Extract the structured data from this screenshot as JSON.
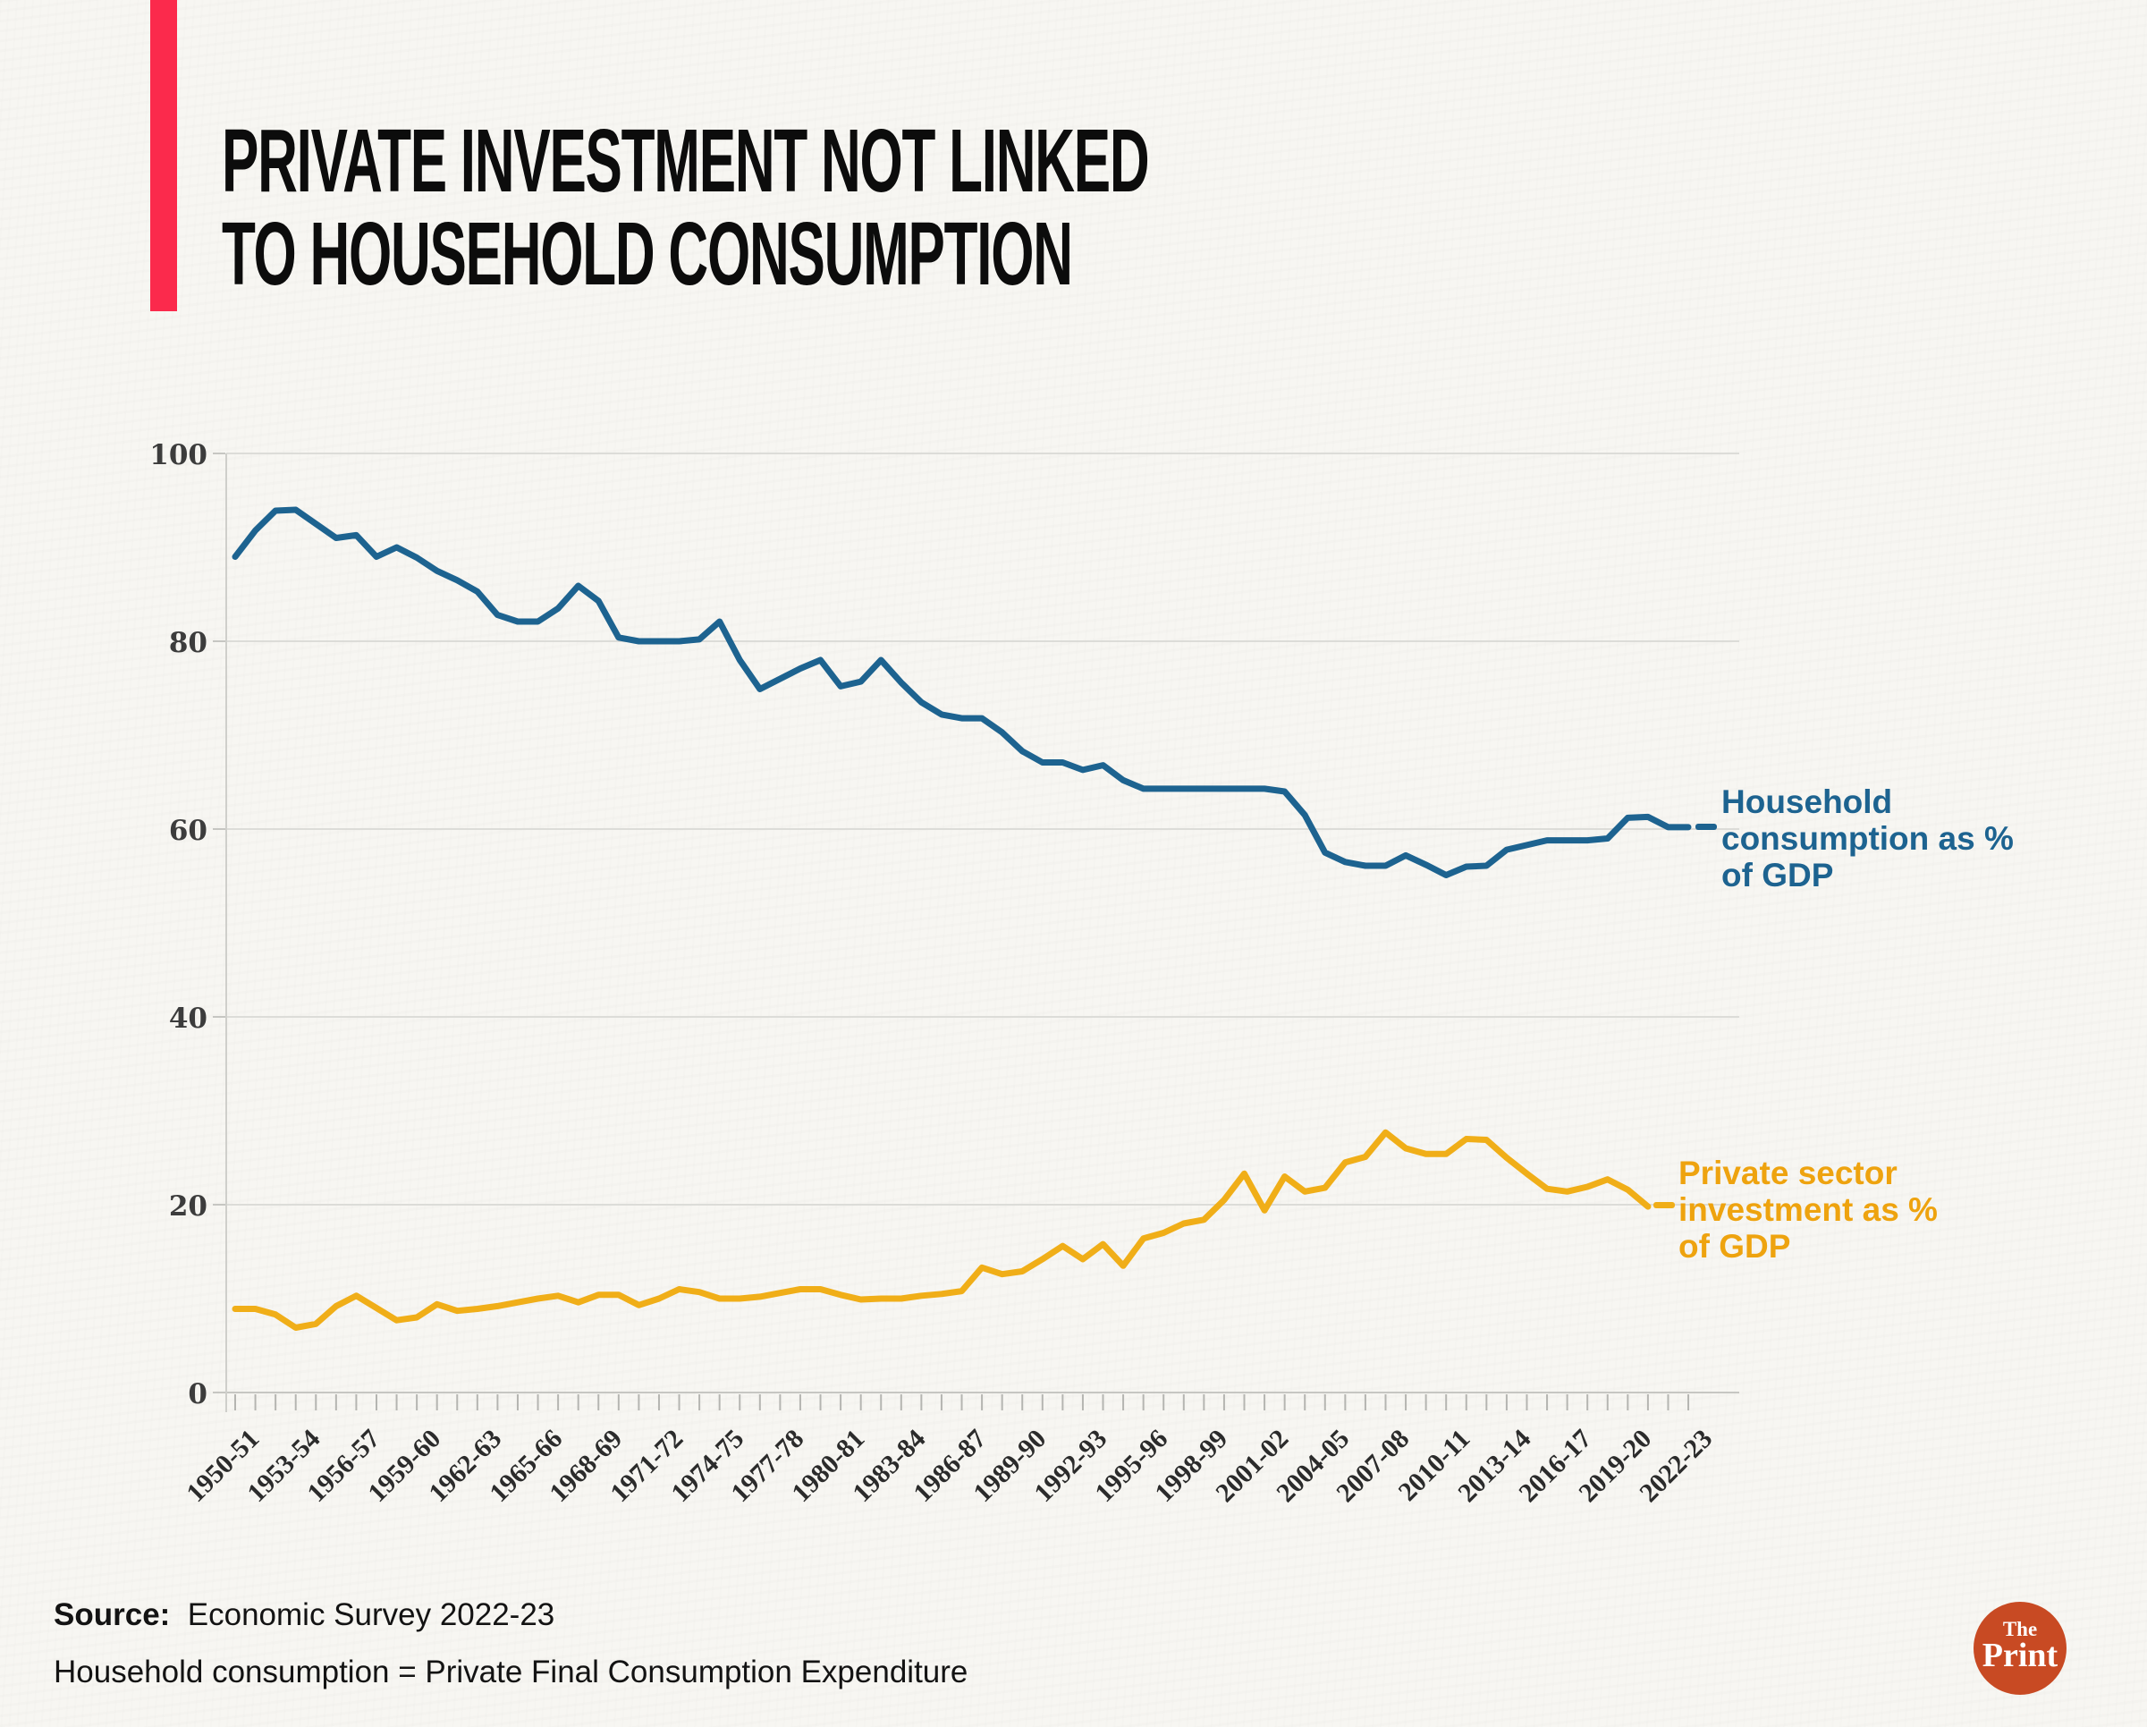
{
  "title": {
    "line1": "PRIVATE INVESTMENT NOT LINKED",
    "line2": "TO HOUSEHOLD CONSUMPTION"
  },
  "source": {
    "label": "Source:",
    "text": "Economic Survey 2022-23",
    "note": "Household consumption = Private Final Consumption Expenditure"
  },
  "logo": {
    "the": "The",
    "print": "Print"
  },
  "colors": {
    "background": "#f7f6f2",
    "accent_bar": "#fb2a4c",
    "household_line": "#1d6390",
    "investment_line": "#f0ae18",
    "gridline": "#dcdcd8",
    "axis": "#c6c6c2",
    "logo_circle": "#c84a23"
  },
  "chart_data": {
    "type": "line",
    "title": "",
    "xlabel": "",
    "ylabel": "",
    "ylim": [
      0,
      100
    ],
    "yticks": [
      0,
      20,
      40,
      60,
      80,
      100
    ],
    "grid": "horizontal",
    "legend_position": "right-of-line-end",
    "x_label_step": 3,
    "x_labels": [
      "1950-51",
      "1953-54",
      "1956-57",
      "1959-60",
      "1962-63",
      "1965-66",
      "1968-69",
      "1971-72",
      "1974-75",
      "1977-78",
      "1980-81",
      "1983-84",
      "1986-87",
      "1989-90",
      "1992-93",
      "1995-96",
      "1998-99",
      "2001-02",
      "2004-05",
      "2007-08",
      "2010-11",
      "2013-14",
      "2016-17",
      "2019-20",
      "2022-23"
    ],
    "series": [
      {
        "name": "Household consumption as % of GDP",
        "label_lines": [
          "Household",
          "consumption as %",
          "of GDP"
        ],
        "color": "#1d6390",
        "start_year": "1950-51",
        "end_year": "2022-23",
        "values": [
          89.0,
          91.8,
          93.9,
          94.0,
          92.5,
          91.0,
          91.3,
          89.0,
          90.0,
          88.9,
          87.5,
          86.5,
          85.3,
          82.8,
          82.1,
          82.1,
          83.5,
          85.9,
          84.3,
          80.4,
          80.0,
          80.0,
          80.0,
          80.2,
          82.1,
          78.0,
          74.9,
          76.0,
          77.1,
          78.0,
          75.2,
          75.7,
          78.0,
          75.6,
          73.5,
          72.2,
          71.8,
          71.8,
          70.3,
          68.3,
          67.1,
          67.1,
          66.3,
          66.8,
          65.2,
          64.3,
          64.3,
          64.3,
          64.3,
          64.3,
          64.3,
          64.3,
          64.0,
          61.5,
          57.5,
          56.5,
          56.1,
          56.1,
          57.2,
          56.2,
          55.1,
          56.0,
          56.1,
          57.8,
          58.3,
          58.8,
          58.8,
          58.8,
          59.0,
          61.2,
          61.3,
          60.2,
          60.2
        ]
      },
      {
        "name": "Private sector investment as % of GDP",
        "label_lines": [
          "Private sector",
          "investment as %",
          "of GDP"
        ],
        "color": "#f0ae18",
        "start_year": "1950-51",
        "end_year": "2020-21",
        "values": [
          8.9,
          8.9,
          8.3,
          6.9,
          7.3,
          9.2,
          10.3,
          9.0,
          7.7,
          8.0,
          9.4,
          8.7,
          8.9,
          9.2,
          9.6,
          10.0,
          10.3,
          9.6,
          10.4,
          10.4,
          9.3,
          10.0,
          11.0,
          10.7,
          10.0,
          10.0,
          10.2,
          10.6,
          11.0,
          11.0,
          10.4,
          9.9,
          10.0,
          10.0,
          10.3,
          10.5,
          10.8,
          13.3,
          12.6,
          12.9,
          14.2,
          15.6,
          14.2,
          15.8,
          13.5,
          16.4,
          17.0,
          18.0,
          18.4,
          20.5,
          23.3,
          19.4,
          23.0,
          21.4,
          21.8,
          24.5,
          25.1,
          27.7,
          26.0,
          25.4,
          25.4,
          27.0,
          26.9,
          25.0,
          23.3,
          21.7,
          21.4,
          21.9,
          22.7,
          21.6,
          19.8
        ]
      }
    ]
  }
}
